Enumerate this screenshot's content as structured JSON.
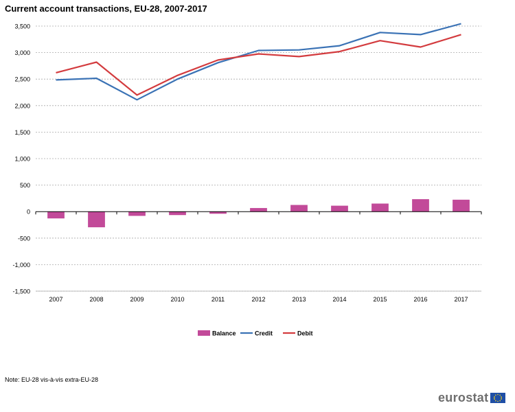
{
  "chart_data": {
    "type": "bar+line",
    "title": "Current account transactions, EU-28, 2007-2017",
    "note": "Note: EU-28 vis-à-vis extra-EU-28",
    "categories": [
      "2007",
      "2008",
      "2009",
      "2010",
      "2011",
      "2012",
      "2013",
      "2014",
      "2015",
      "2016",
      "2017"
    ],
    "series": [
      {
        "name": "Balance",
        "type": "bar",
        "color": "#c24a99",
        "values": [
          -128,
          -295,
          -80,
          -65,
          -40,
          68,
          126,
          112,
          152,
          235,
          225
        ]
      },
      {
        "name": "Credit",
        "type": "line",
        "color": "#3a72b5",
        "values": [
          2485,
          2515,
          2110,
          2500,
          2810,
          3040,
          3050,
          3130,
          3380,
          3340,
          3545
        ]
      },
      {
        "name": "Debit",
        "type": "line",
        "color": "#d33b3e",
        "values": [
          2620,
          2820,
          2200,
          2570,
          2860,
          2975,
          2925,
          3020,
          3225,
          3105,
          3340
        ]
      }
    ],
    "yticks": [
      3500,
      3000,
      2500,
      2000,
      1500,
      1000,
      500,
      0,
      -500,
      -1000,
      -1500
    ],
    "ytick_labels": [
      "3,500",
      "3,000",
      "2,500",
      "2,000",
      "1,500",
      "1,000",
      "500",
      "0",
      "-500",
      "-1,000",
      "-1,500"
    ],
    "ylim": [
      -1500,
      3500
    ],
    "grid": true,
    "legend_position": "bottom"
  },
  "branding": {
    "logo_text": "eurostat"
  }
}
